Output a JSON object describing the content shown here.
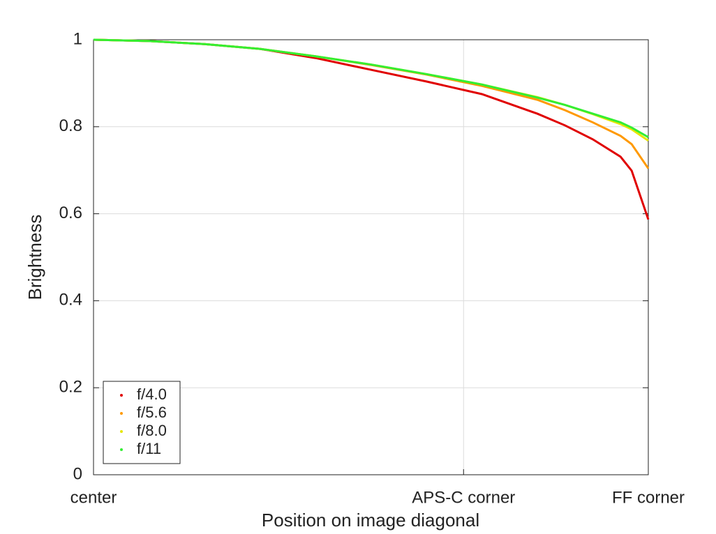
{
  "chart_data": {
    "type": "line",
    "xlabel": "Position on image diagonal",
    "ylabel": "Brightness",
    "x": [
      0,
      0.1,
      0.2,
      0.3,
      0.4,
      0.5,
      0.6,
      0.7,
      0.8,
      0.85,
      0.9,
      0.95,
      0.97,
      1.0
    ],
    "series": [
      {
        "name": "f/4.0",
        "color": "#e00000",
        "values": [
          1.0,
          0.997,
          0.99,
          0.979,
          0.958,
          0.931,
          0.904,
          0.875,
          0.83,
          0.803,
          0.771,
          0.731,
          0.699,
          0.587
        ]
      },
      {
        "name": "f/5.6",
        "color": "#ff9900",
        "values": [
          1.0,
          0.997,
          0.99,
          0.979,
          0.962,
          0.942,
          0.92,
          0.894,
          0.862,
          0.838,
          0.81,
          0.779,
          0.76,
          0.704
        ]
      },
      {
        "name": "f/8.0",
        "color": "#e6e600",
        "values": [
          1.0,
          0.997,
          0.99,
          0.979,
          0.962,
          0.943,
          0.921,
          0.897,
          0.868,
          0.85,
          0.829,
          0.806,
          0.794,
          0.768
        ]
      },
      {
        "name": "f/11",
        "color": "#33ee33",
        "values": [
          1.0,
          0.997,
          0.99,
          0.979,
          0.962,
          0.943,
          0.921,
          0.897,
          0.867,
          0.85,
          0.83,
          0.81,
          0.798,
          0.776
        ]
      }
    ],
    "xlim": [
      0,
      1
    ],
    "xticks": [
      {
        "value": 0,
        "label": "center"
      },
      {
        "value": 0.667,
        "label": "APS-C corner"
      },
      {
        "value": 1,
        "label": "FF corner"
      }
    ],
    "ylim": [
      0,
      1
    ],
    "yticks": [
      0,
      0.2,
      0.4,
      0.6,
      0.8,
      1
    ],
    "grid": true,
    "legend": "lower left"
  }
}
